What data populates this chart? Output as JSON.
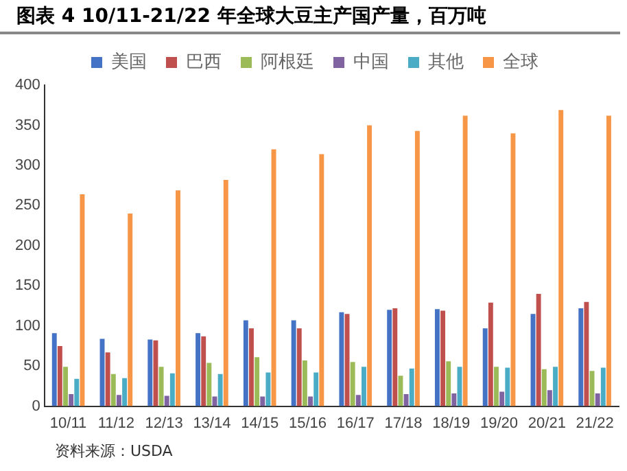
{
  "chart_data": {
    "type": "bar",
    "title": "图表 4 10/11-21/22 年全球大豆主产国产量，百万吨",
    "categories": [
      "10/11",
      "11/12",
      "12/13",
      "13/14",
      "14/15",
      "15/16",
      "16/17",
      "17/18",
      "18/19",
      "19/20",
      "20/21",
      "21/22"
    ],
    "series": [
      {
        "name": "美国",
        "color": "#4472c4",
        "values": [
          91,
          84,
          83,
          91,
          107,
          107,
          117,
          120,
          121,
          97,
          115,
          122
        ]
      },
      {
        "name": "巴西",
        "color": "#c0504d",
        "values": [
          75,
          67,
          82,
          87,
          97,
          97,
          115,
          122,
          119,
          129,
          140,
          130
        ]
      },
      {
        "name": "阿根廷",
        "color": "#9bbb59",
        "values": [
          49,
          40,
          49,
          54,
          61,
          57,
          55,
          38,
          56,
          49,
          46,
          44
        ]
      },
      {
        "name": "中国",
        "color": "#8064a2",
        "values": [
          15,
          14,
          13,
          12,
          12,
          12,
          14,
          15,
          16,
          18,
          20,
          16
        ]
      },
      {
        "name": "其他",
        "color": "#4bacc6",
        "values": [
          34,
          35,
          41,
          40,
          42,
          42,
          49,
          47,
          49,
          48,
          49,
          48
        ]
      },
      {
        "name": "全球",
        "color": "#f79646",
        "values": [
          264,
          240,
          269,
          282,
          320,
          314,
          350,
          343,
          362,
          340,
          369,
          362
        ]
      }
    ],
    "ylim": [
      0,
      400
    ],
    "yticks": [
      0,
      50,
      100,
      150,
      200,
      250,
      300,
      350,
      400
    ],
    "grid": false,
    "legend": "top",
    "annotations": [
      "资料来源：USDA"
    ]
  }
}
